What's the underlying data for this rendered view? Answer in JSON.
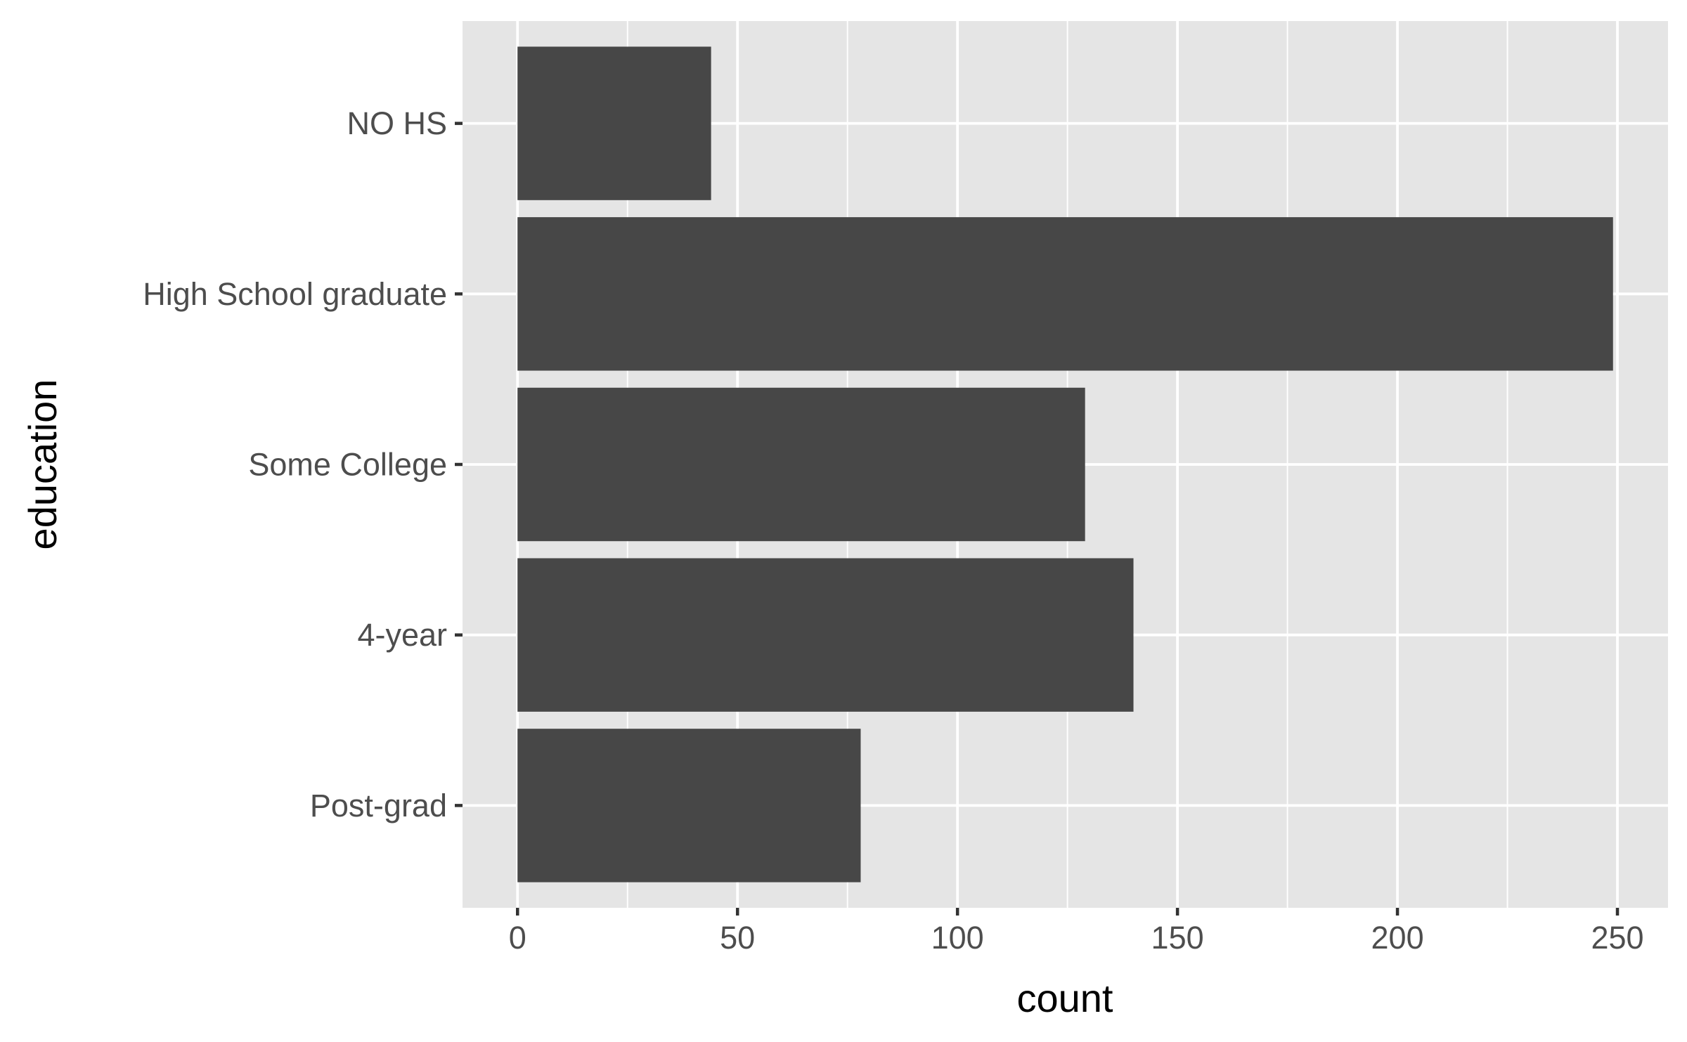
{
  "chart_data": {
    "type": "bar",
    "orientation": "horizontal",
    "categories": [
      "NO HS",
      "High School graduate",
      "Some College",
      "4-year",
      "Post-grad"
    ],
    "values": [
      44,
      249,
      129,
      140,
      78
    ],
    "xlabel": "count",
    "ylabel": "education",
    "xlim": [
      -12.5,
      261.5
    ],
    "xticks": [
      0,
      50,
      100,
      150,
      200,
      250
    ],
    "xtick_labels": [
      "0",
      "50",
      "100",
      "150",
      "200",
      "250"
    ],
    "grid": true,
    "colors": {
      "bar": "#474747",
      "panel": "#e5e5e5",
      "grid": "#ffffff"
    }
  }
}
